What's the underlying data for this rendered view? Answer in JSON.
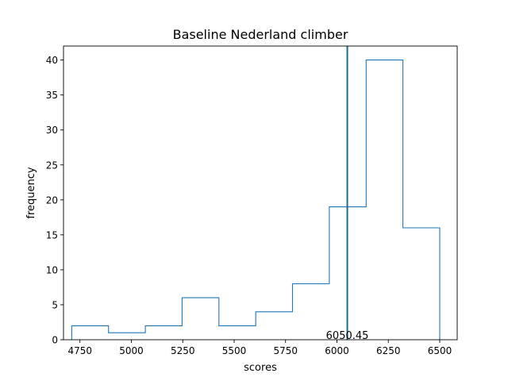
{
  "chart_data": {
    "type": "histogram",
    "title": "Baseline Nederland climber",
    "xlabel": "scores",
    "ylabel": "frequency",
    "xlim": [
      4670,
      6585
    ],
    "ylim": [
      0,
      42
    ],
    "xticks": [
      4750,
      5000,
      5250,
      5500,
      5750,
      6000,
      6250,
      6500
    ],
    "yticks": [
      0,
      5,
      10,
      15,
      20,
      25,
      30,
      35,
      40
    ],
    "bin_edges": [
      4710,
      4889,
      5068,
      5247,
      5426,
      5605,
      5784,
      5963,
      6142,
      6321,
      6500
    ],
    "counts": [
      2,
      1,
      2,
      6,
      2,
      4,
      8,
      19,
      40,
      16
    ],
    "reference_line": {
      "x": 6050.45,
      "label": "6050.45"
    },
    "colors": {
      "step": "#1f77b4",
      "reference": "#1a6b8a"
    },
    "grid": false
  }
}
